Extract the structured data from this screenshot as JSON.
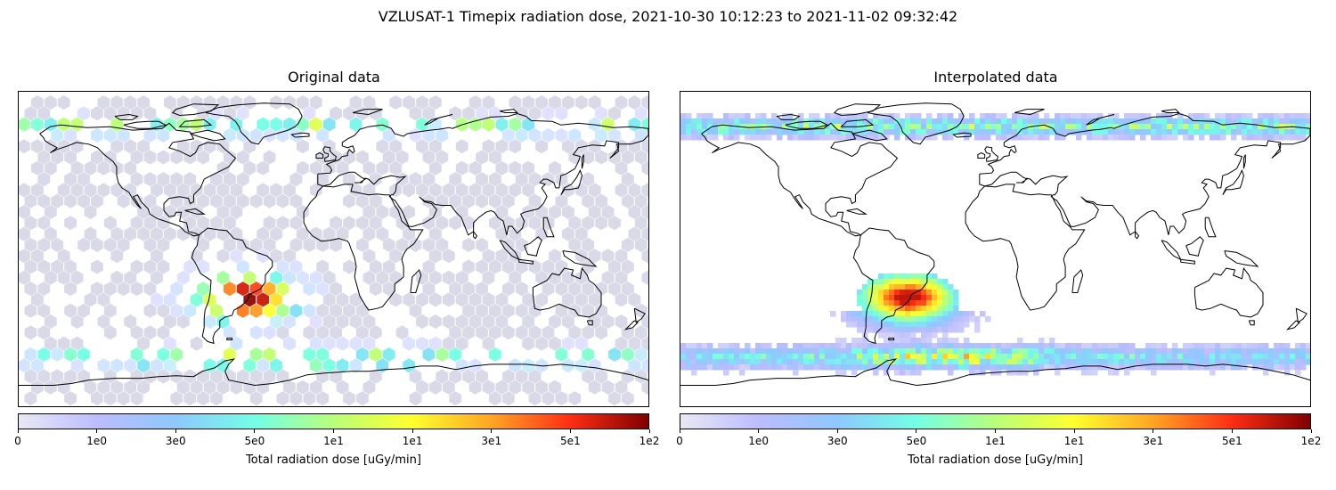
{
  "title": "VZLUSAT-1 Timepix radiation dose, 2021-10-30 10:12:23 to 2021-11-02 09:32:42",
  "panels": {
    "left": {
      "title": "Original data"
    },
    "right": {
      "title": "Interpolated data"
    }
  },
  "colorbar": {
    "label": "Total radiation dose [uGy/min]",
    "ticks": [
      "0",
      "1e0",
      "3e0",
      "5e0",
      "1e1",
      "1e1",
      "3e1",
      "5e1",
      "1e2"
    ],
    "colors": [
      "#e8e8f4",
      "#bcbcff",
      "#8ec8ff",
      "#73ffe6",
      "#b8ff7a",
      "#ffff2e",
      "#ffa524",
      "#ff2e14",
      "#800000"
    ]
  },
  "map": {
    "extent": {
      "lon": [
        -180,
        180
      ],
      "lat": [
        -90,
        90
      ]
    },
    "projection": "PlateCarree"
  }
}
